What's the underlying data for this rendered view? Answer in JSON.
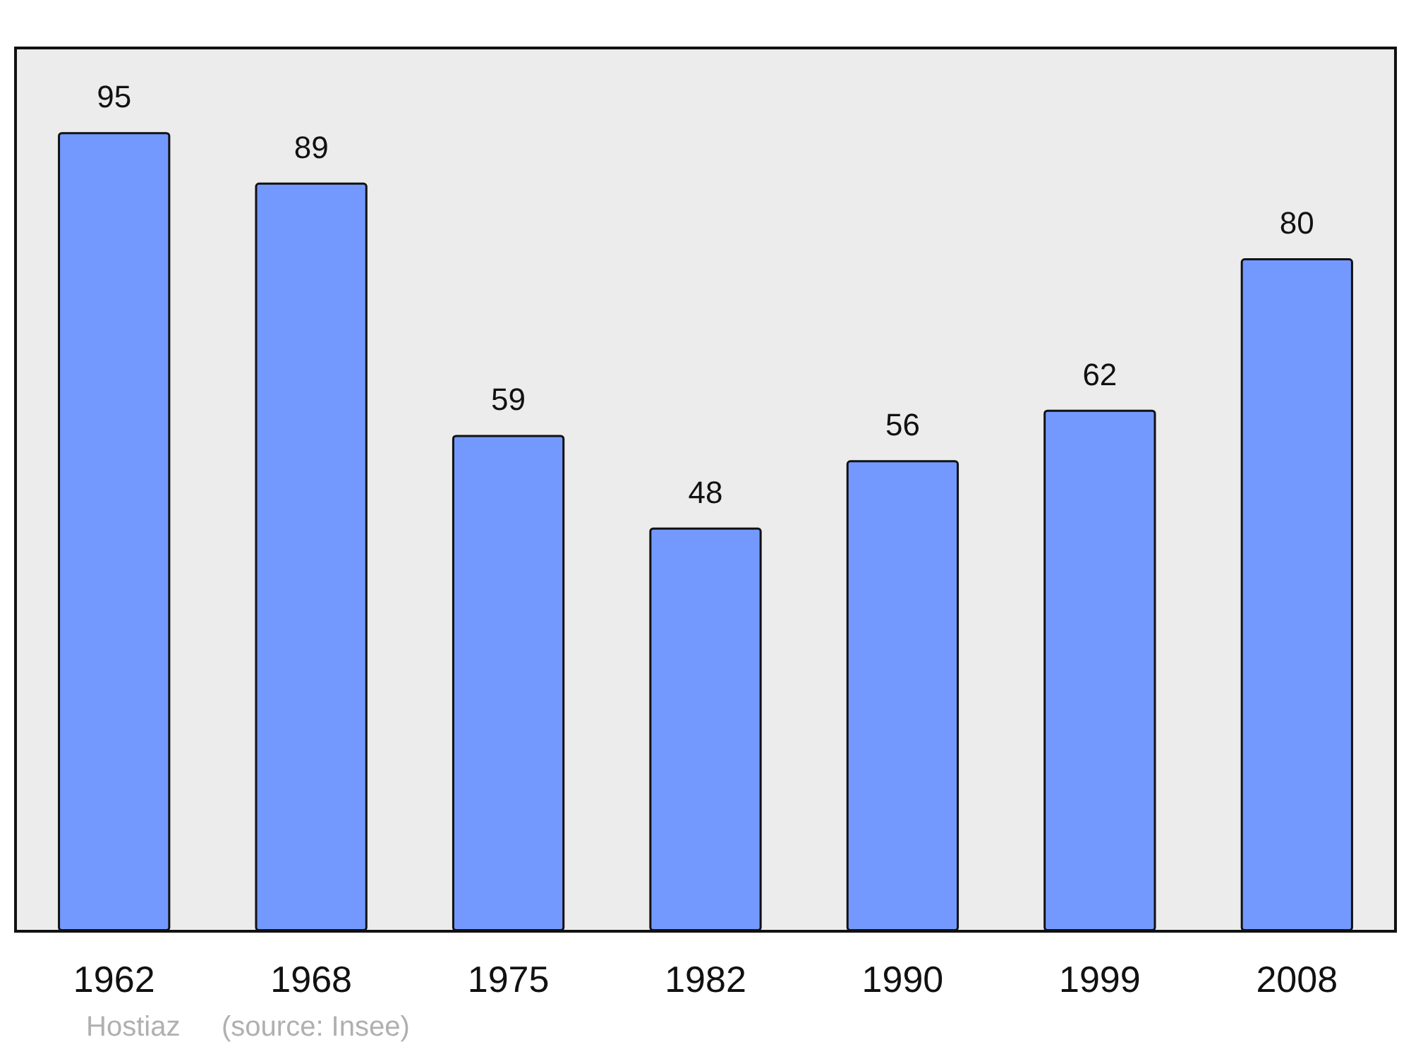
{
  "chart_data": {
    "type": "bar",
    "categories": [
      "1962",
      "1968",
      "1975",
      "1982",
      "1990",
      "1999",
      "2008"
    ],
    "values": [
      95,
      89,
      59,
      48,
      56,
      62,
      80
    ],
    "color": "#7399ff",
    "ylim": [
      0,
      105
    ],
    "data_labels": true,
    "tick_labels": "x",
    "annotations": [
      "Hostiaz",
      "(source: Insee)"
    ]
  }
}
